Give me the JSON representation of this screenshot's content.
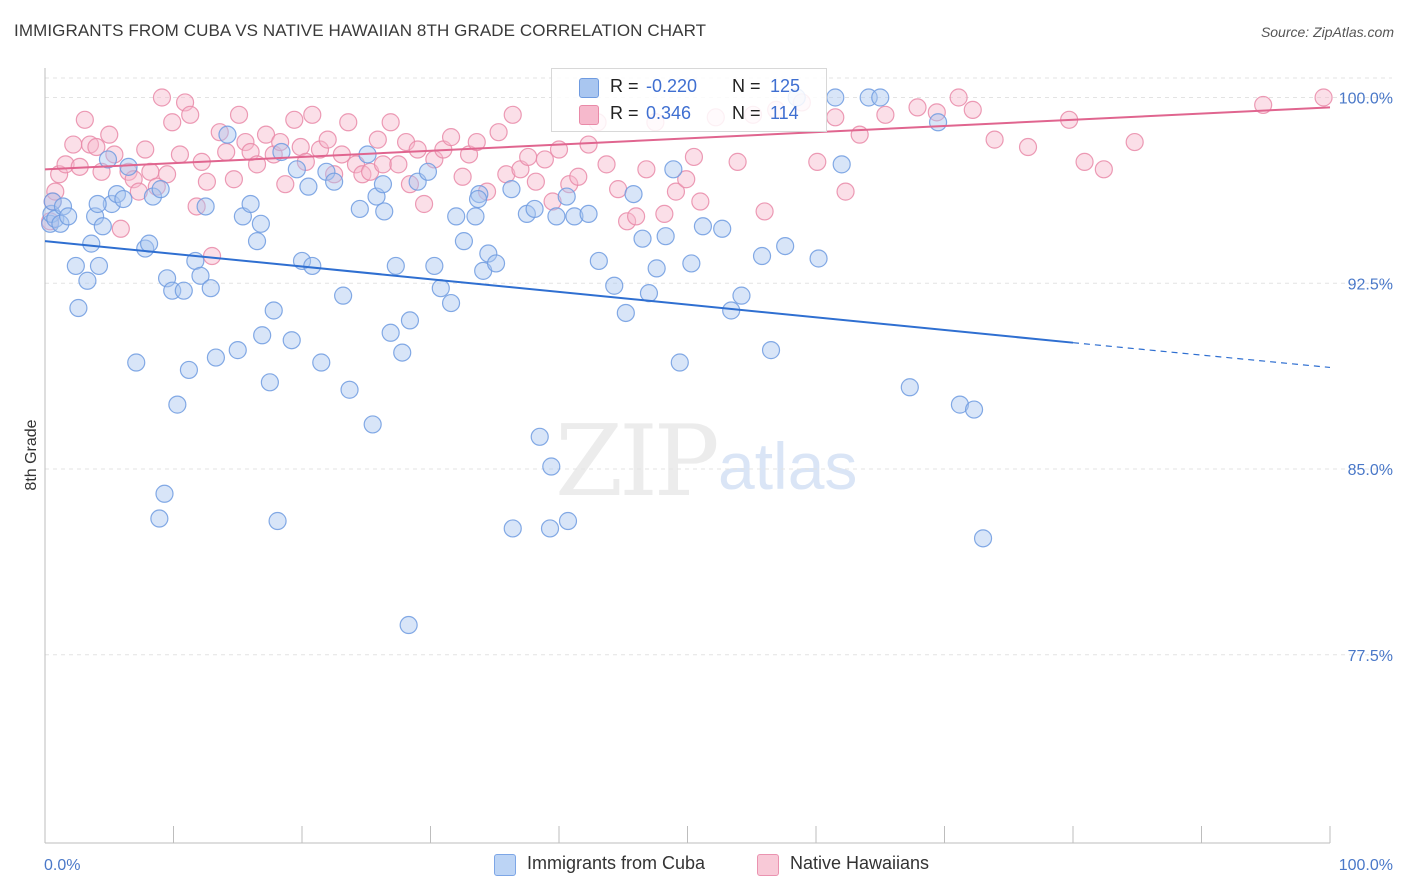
{
  "title": "IMMIGRANTS FROM CUBA VS NATIVE HAWAIIAN 8TH GRADE CORRELATION CHART",
  "source": "Source: ZipAtlas.com",
  "watermark": {
    "zip": "ZIP",
    "atlas": "atlas"
  },
  "legend_top": {
    "rows": [
      {
        "r_label": "R =",
        "r_value": "-0.220",
        "n_label": "N =",
        "n_value": "125"
      },
      {
        "r_label": "R =",
        "r_value": "0.346",
        "n_label": "N =",
        "n_value": "114"
      }
    ]
  },
  "legend_bottom": {
    "series1": "Immigrants from Cuba",
    "series2": "Native Hawaiians"
  },
  "colors": {
    "blue_fill": "#a9c6f0",
    "blue_stroke": "#6f9be0",
    "blue_line": "#2f6fd1",
    "pink_fill": "#f6b9cc",
    "pink_stroke": "#e98aa8",
    "pink_line": "#e0658f",
    "tick_text": "#4a78c8"
  },
  "chart_data": {
    "type": "scatter",
    "title": "IMMIGRANTS FROM CUBA VS NATIVE HAWAIIAN 8TH GRADE CORRELATION CHART",
    "xlabel": "",
    "ylabel": "8th Grade",
    "xlim": [
      0,
      100
    ],
    "ylim": [
      70,
      101
    ],
    "y_ticks": [
      77.5,
      85.0,
      92.5,
      100.0
    ],
    "y_tick_labels": [
      "77.5%",
      "85.0%",
      "92.5%",
      "100.0%"
    ],
    "x_tick_labels": [
      "0.0%",
      "100.0%"
    ],
    "grid": "horizontal dashed",
    "legend": "top-center",
    "series": [
      {
        "name": "Immigrants from Cuba",
        "R": -0.22,
        "N": 125,
        "trend": {
          "x": [
            0,
            80,
            100
          ],
          "y": [
            94.2,
            90.1,
            89.1
          ]
        },
        "points": [
          [
            0.4,
            94.9
          ],
          [
            0.5,
            95.3
          ],
          [
            0.6,
            95.8
          ],
          [
            0.8,
            95.1
          ],
          [
            1.2,
            94.9
          ],
          [
            1.4,
            95.6
          ],
          [
            1.8,
            95.2
          ],
          [
            2.4,
            93.2
          ],
          [
            2.6,
            91.5
          ],
          [
            3.3,
            92.6
          ],
          [
            3.6,
            94.1
          ],
          [
            3.9,
            95.2
          ],
          [
            4.2,
            93.2
          ],
          [
            4.5,
            94.8
          ],
          [
            4.9,
            97.5
          ],
          [
            5.2,
            95.7
          ],
          [
            5.6,
            96.1
          ],
          [
            6.1,
            95.9
          ],
          [
            6.5,
            97.2
          ],
          [
            7.1,
            89.3
          ],
          [
            7.8,
            93.9
          ],
          [
            8.1,
            94.1
          ],
          [
            8.4,
            96.0
          ],
          [
            9.0,
            96.3
          ],
          [
            9.5,
            92.7
          ],
          [
            9.9,
            92.2
          ],
          [
            10.3,
            87.6
          ],
          [
            10.8,
            92.2
          ],
          [
            11.2,
            89.0
          ],
          [
            11.7,
            93.4
          ],
          [
            12.1,
            92.8
          ],
          [
            12.5,
            95.6
          ],
          [
            12.9,
            92.3
          ],
          [
            13.3,
            89.5
          ],
          [
            14.2,
            98.5
          ],
          [
            15.0,
            89.8
          ],
          [
            15.4,
            95.2
          ],
          [
            16.0,
            95.7
          ],
          [
            16.5,
            94.2
          ],
          [
            16.9,
            90.4
          ],
          [
            17.5,
            88.5
          ],
          [
            17.8,
            91.4
          ],
          [
            18.4,
            97.8
          ],
          [
            19.2,
            90.2
          ],
          [
            19.6,
            97.1
          ],
          [
            20.0,
            93.4
          ],
          [
            20.5,
            96.4
          ],
          [
            20.8,
            93.2
          ],
          [
            21.5,
            89.3
          ],
          [
            21.9,
            97.0
          ],
          [
            22.5,
            96.6
          ],
          [
            23.2,
            92.0
          ],
          [
            23.7,
            88.2
          ],
          [
            24.5,
            95.5
          ],
          [
            25.1,
            97.7
          ],
          [
            25.5,
            86.8
          ],
          [
            25.8,
            96.0
          ],
          [
            26.4,
            95.4
          ],
          [
            26.9,
            90.5
          ],
          [
            27.3,
            93.2
          ],
          [
            27.8,
            89.7
          ],
          [
            28.4,
            91.0
          ],
          [
            29.0,
            96.6
          ],
          [
            29.8,
            97.0
          ],
          [
            30.3,
            93.2
          ],
          [
            30.8,
            92.3
          ],
          [
            31.6,
            91.7
          ],
          [
            32.0,
            95.2
          ],
          [
            32.6,
            94.2
          ],
          [
            33.5,
            95.2
          ],
          [
            33.8,
            96.1
          ],
          [
            34.1,
            93.0
          ],
          [
            34.5,
            93.7
          ],
          [
            35.1,
            93.3
          ],
          [
            36.3,
            96.3
          ],
          [
            37.5,
            95.3
          ],
          [
            38.1,
            95.5
          ],
          [
            38.5,
            86.3
          ],
          [
            39.3,
            82.6
          ],
          [
            39.8,
            95.2
          ],
          [
            40.6,
            96.0
          ],
          [
            41.2,
            95.2
          ],
          [
            42.3,
            95.3
          ],
          [
            43.1,
            93.4
          ],
          [
            44.3,
            92.4
          ],
          [
            45.2,
            91.3
          ],
          [
            46.5,
            94.3
          ],
          [
            47.0,
            92.1
          ],
          [
            47.6,
            93.1
          ],
          [
            48.3,
            94.4
          ],
          [
            48.9,
            97.1
          ],
          [
            49.4,
            89.3
          ],
          [
            50.3,
            93.3
          ],
          [
            51.2,
            94.8
          ],
          [
            52.7,
            94.7
          ],
          [
            53.4,
            91.4
          ],
          [
            54.2,
            92.0
          ],
          [
            55.8,
            93.6
          ],
          [
            56.5,
            89.8
          ],
          [
            57.6,
            94.0
          ],
          [
            58.5,
            100.0
          ],
          [
            60.2,
            93.5
          ],
          [
            61.5,
            100.0
          ],
          [
            62.0,
            97.3
          ],
          [
            64.1,
            100.0
          ],
          [
            65.0,
            100.0
          ],
          [
            67.3,
            88.3
          ],
          [
            69.5,
            99.0
          ],
          [
            71.2,
            87.6
          ],
          [
            72.3,
            87.4
          ],
          [
            73.0,
            82.2
          ],
          [
            8.9,
            83.0
          ],
          [
            9.3,
            84.0
          ],
          [
            18.1,
            82.9
          ],
          [
            28.3,
            78.7
          ],
          [
            36.4,
            82.6
          ],
          [
            39.4,
            85.1
          ],
          [
            40.7,
            82.9
          ],
          [
            26.3,
            96.5
          ],
          [
            33.7,
            95.9
          ],
          [
            45.8,
            96.1
          ],
          [
            16.8,
            94.9
          ],
          [
            4.1,
            95.7
          ]
        ]
      },
      {
        "name": "Native Hawaiians",
        "R": 0.346,
        "N": 114,
        "trend": {
          "x": [
            0,
            100
          ],
          "y": [
            97.1,
            99.6
          ]
        },
        "points": [
          [
            0.4,
            95.0
          ],
          [
            0.6,
            95.8
          ],
          [
            0.8,
            96.2
          ],
          [
            1.1,
            96.9
          ],
          [
            1.6,
            97.3
          ],
          [
            2.2,
            98.1
          ],
          [
            2.7,
            97.2
          ],
          [
            3.1,
            99.1
          ],
          [
            3.5,
            98.1
          ],
          [
            4.0,
            98.0
          ],
          [
            4.4,
            97.0
          ],
          [
            5.0,
            98.5
          ],
          [
            5.4,
            97.7
          ],
          [
            5.9,
            94.7
          ],
          [
            6.5,
            97.0
          ],
          [
            6.9,
            96.7
          ],
          [
            7.3,
            96.2
          ],
          [
            7.8,
            97.9
          ],
          [
            8.2,
            97.0
          ],
          [
            8.7,
            96.4
          ],
          [
            9.1,
            100.0
          ],
          [
            9.5,
            96.9
          ],
          [
            9.9,
            99.0
          ],
          [
            10.5,
            97.7
          ],
          [
            10.9,
            99.8
          ],
          [
            11.3,
            99.3
          ],
          [
            11.8,
            95.6
          ],
          [
            12.2,
            97.4
          ],
          [
            12.6,
            96.6
          ],
          [
            13.0,
            93.6
          ],
          [
            13.6,
            98.6
          ],
          [
            14.1,
            97.8
          ],
          [
            14.7,
            96.7
          ],
          [
            15.1,
            99.3
          ],
          [
            15.6,
            98.2
          ],
          [
            16.0,
            97.8
          ],
          [
            16.5,
            97.3
          ],
          [
            17.2,
            98.5
          ],
          [
            17.8,
            97.7
          ],
          [
            18.3,
            98.2
          ],
          [
            18.7,
            96.5
          ],
          [
            19.4,
            99.1
          ],
          [
            19.9,
            98.0
          ],
          [
            20.3,
            97.4
          ],
          [
            20.8,
            99.3
          ],
          [
            21.4,
            97.9
          ],
          [
            22.0,
            98.3
          ],
          [
            22.5,
            96.9
          ],
          [
            23.1,
            97.7
          ],
          [
            23.6,
            99.0
          ],
          [
            24.2,
            97.3
          ],
          [
            24.7,
            96.9
          ],
          [
            25.3,
            97.0
          ],
          [
            25.9,
            98.3
          ],
          [
            26.3,
            97.3
          ],
          [
            26.9,
            99.0
          ],
          [
            27.5,
            97.3
          ],
          [
            28.1,
            98.2
          ],
          [
            28.4,
            96.5
          ],
          [
            29.0,
            97.9
          ],
          [
            29.5,
            95.7
          ],
          [
            30.3,
            97.5
          ],
          [
            31.0,
            97.9
          ],
          [
            31.6,
            98.4
          ],
          [
            32.5,
            96.8
          ],
          [
            33.0,
            97.7
          ],
          [
            33.6,
            98.2
          ],
          [
            34.4,
            96.2
          ],
          [
            35.3,
            98.6
          ],
          [
            35.9,
            96.9
          ],
          [
            36.4,
            99.3
          ],
          [
            37.0,
            97.1
          ],
          [
            37.6,
            97.6
          ],
          [
            38.2,
            96.6
          ],
          [
            38.9,
            97.5
          ],
          [
            39.5,
            95.8
          ],
          [
            40.0,
            97.9
          ],
          [
            40.8,
            96.5
          ],
          [
            41.5,
            96.8
          ],
          [
            42.3,
            98.1
          ],
          [
            43.0,
            99.0
          ],
          [
            43.7,
            97.3
          ],
          [
            44.6,
            96.3
          ],
          [
            45.3,
            95.0
          ],
          [
            46.0,
            95.2
          ],
          [
            46.8,
            97.1
          ],
          [
            47.5,
            99.0
          ],
          [
            48.2,
            95.3
          ],
          [
            49.1,
            96.2
          ],
          [
            49.9,
            96.7
          ],
          [
            50.5,
            97.6
          ],
          [
            51.0,
            95.8
          ],
          [
            52.2,
            99.2
          ],
          [
            53.9,
            97.4
          ],
          [
            55.1,
            99.3
          ],
          [
            56.0,
            95.4
          ],
          [
            56.9,
            99.5
          ],
          [
            58.9,
            99.8
          ],
          [
            60.1,
            97.4
          ],
          [
            61.5,
            99.2
          ],
          [
            62.3,
            96.2
          ],
          [
            63.4,
            98.5
          ],
          [
            65.4,
            99.3
          ],
          [
            67.9,
            99.6
          ],
          [
            69.4,
            99.4
          ],
          [
            71.1,
            100.0
          ],
          [
            72.2,
            99.5
          ],
          [
            73.9,
            98.3
          ],
          [
            76.5,
            98.0
          ],
          [
            79.7,
            99.1
          ],
          [
            80.9,
            97.4
          ],
          [
            82.4,
            97.1
          ],
          [
            84.8,
            98.2
          ],
          [
            94.8,
            99.7
          ],
          [
            99.5,
            100.0
          ]
        ]
      }
    ]
  }
}
